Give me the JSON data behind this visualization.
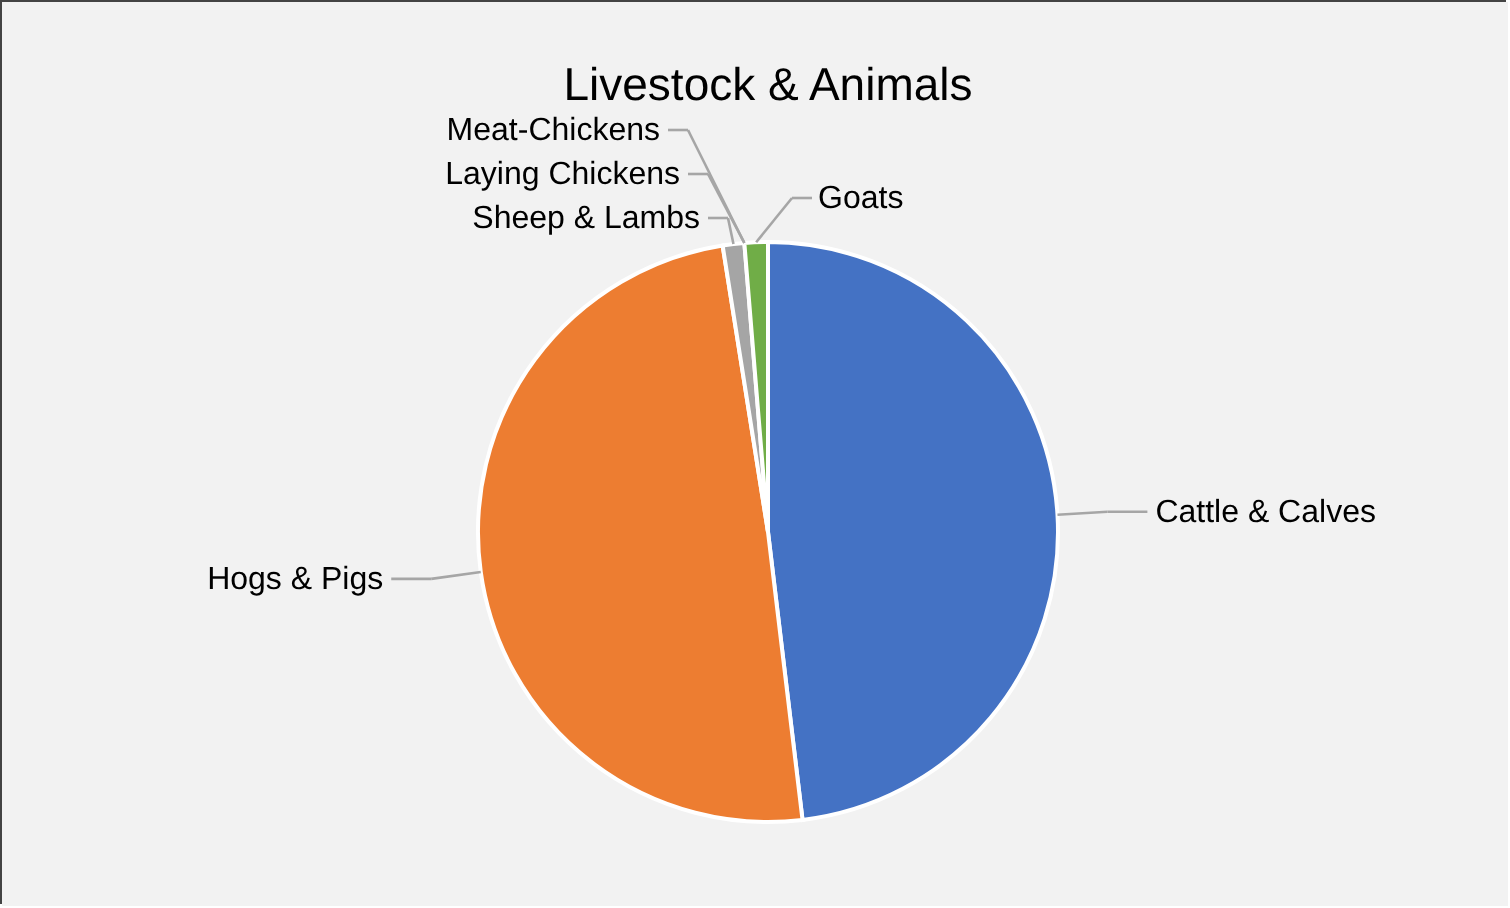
{
  "chart_data": {
    "type": "pie",
    "title": "Livestock & Animals",
    "categories": [
      "Cattle & Calves",
      "Hogs & Pigs",
      "Sheep & Lambs",
      "Laying Chickens",
      "Meat-Chickens",
      "Goats"
    ],
    "values": [
      48.1,
      49.4,
      1.2,
      null,
      null,
      1.3
    ],
    "colors": [
      "#4472c4",
      "#ed7d31",
      "#a5a5a5",
      "#ffc000",
      "#5b9bd5",
      "#70ad47"
    ]
  }
}
